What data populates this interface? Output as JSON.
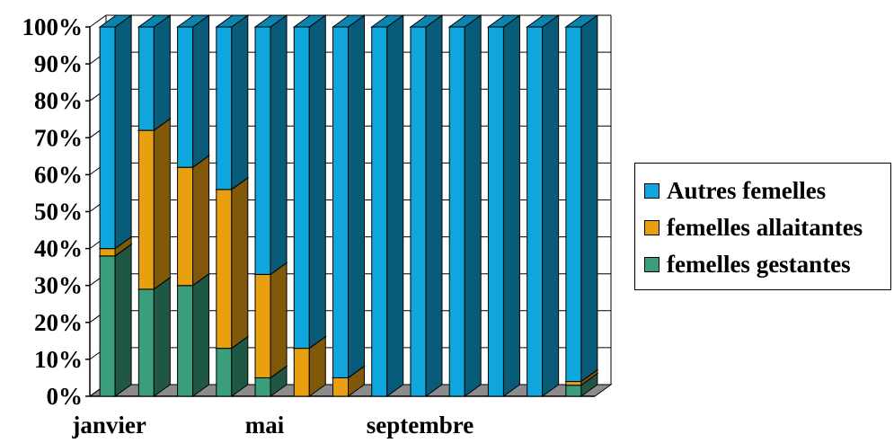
{
  "chart_data": {
    "type": "bar",
    "stacked": "percent",
    "three_d": true,
    "categories": [
      "janvier",
      "",
      "",
      "",
      "mai",
      "",
      "",
      "",
      "septembre",
      "",
      "",
      "",
      ""
    ],
    "series": [
      {
        "name": "femelles gestantes",
        "values": [
          38,
          29,
          30,
          13,
          5,
          0,
          0,
          0,
          0,
          0,
          0,
          0,
          3
        ],
        "color": "#3a9e7b"
      },
      {
        "name": "femelles allaitantes",
        "values": [
          2,
          43,
          32,
          43,
          28,
          13,
          5,
          0,
          0,
          0,
          0,
          0,
          1
        ],
        "color": "#e8a010"
      },
      {
        "name": "Autres femelles",
        "values": [
          60,
          28,
          38,
          44,
          67,
          87,
          95,
          100,
          100,
          100,
          100,
          100,
          96
        ],
        "color": "#0ea6dc"
      }
    ],
    "ylim": [
      0,
      100
    ],
    "yticks": [
      "0%",
      "10%",
      "20%",
      "30%",
      "40%",
      "50%",
      "60%",
      "70%",
      "80%",
      "90%",
      "100%"
    ],
    "xlabel": "",
    "ylabel": "",
    "grid": true,
    "legend_position": "right"
  },
  "legend": {
    "items": [
      {
        "label": "Autres femelles",
        "color": "#0ea6dc"
      },
      {
        "label": "femelles allaitantes",
        "color": "#e8a010"
      },
      {
        "label": "femelles gestantes",
        "color": "#3a9e7b"
      }
    ]
  }
}
